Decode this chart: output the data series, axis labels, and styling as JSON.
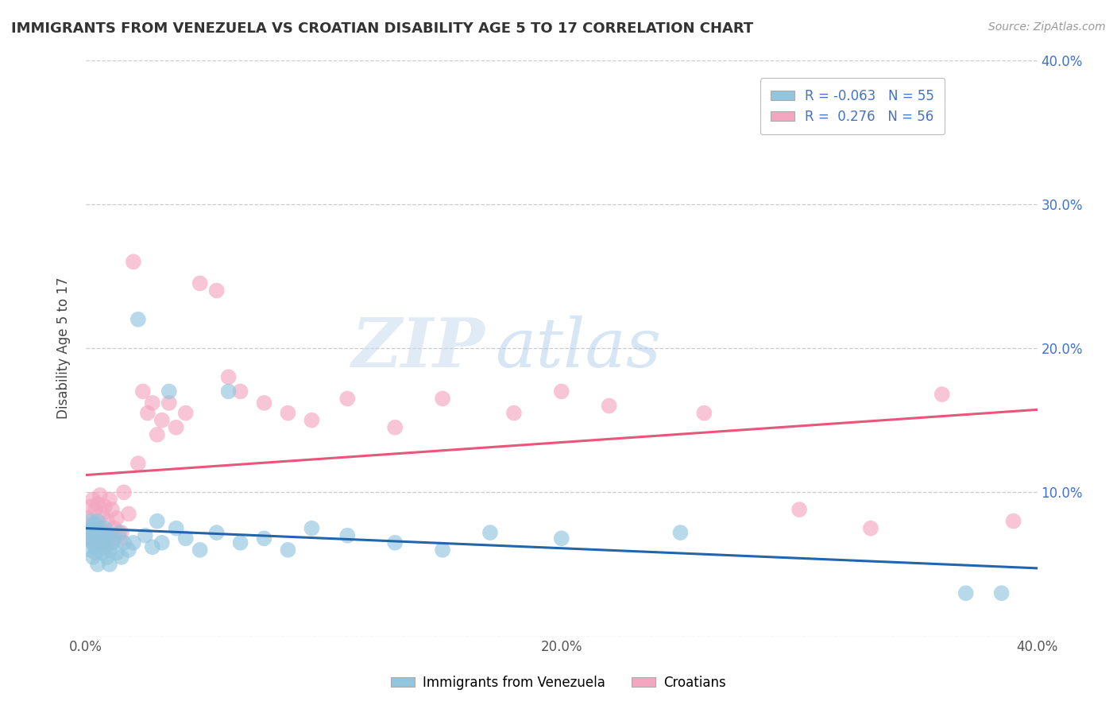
{
  "title": "IMMIGRANTS FROM VENEZUELA VS CROATIAN DISABILITY AGE 5 TO 17 CORRELATION CHART",
  "source": "Source: ZipAtlas.com",
  "ylabel": "Disability Age 5 to 17",
  "xlim": [
    0.0,
    0.4
  ],
  "ylim": [
    0.0,
    0.4
  ],
  "x_ticks": [
    0.0,
    0.1,
    0.2,
    0.3,
    0.4
  ],
  "y_ticks": [
    0.0,
    0.1,
    0.2,
    0.3,
    0.4
  ],
  "x_tick_labels": [
    "0.0%",
    "",
    "20.0%",
    "",
    "40.0%"
  ],
  "y_tick_labels_right": [
    "",
    "10.0%",
    "20.0%",
    "30.0%",
    "40.0%"
  ],
  "color_blue": "#92C5DE",
  "color_pink": "#F4A6C0",
  "color_blue_line": "#2166AC",
  "color_pink_line": "#E8567A",
  "watermark_zip": "ZIP",
  "watermark_atlas": "atlas",
  "blue_scatter_x": [
    0.001,
    0.001,
    0.002,
    0.002,
    0.002,
    0.003,
    0.003,
    0.003,
    0.004,
    0.004,
    0.004,
    0.005,
    0.005,
    0.005,
    0.006,
    0.006,
    0.007,
    0.007,
    0.008,
    0.008,
    0.009,
    0.009,
    0.01,
    0.01,
    0.011,
    0.012,
    0.013,
    0.014,
    0.015,
    0.016,
    0.018,
    0.02,
    0.022,
    0.025,
    0.028,
    0.03,
    0.032,
    0.035,
    0.038,
    0.042,
    0.048,
    0.055,
    0.06,
    0.065,
    0.075,
    0.085,
    0.095,
    0.11,
    0.13,
    0.15,
    0.17,
    0.2,
    0.25,
    0.37,
    0.385
  ],
  "blue_scatter_y": [
    0.074,
    0.068,
    0.08,
    0.06,
    0.072,
    0.065,
    0.075,
    0.055,
    0.078,
    0.062,
    0.058,
    0.07,
    0.05,
    0.08,
    0.065,
    0.072,
    0.068,
    0.058,
    0.075,
    0.062,
    0.055,
    0.07,
    0.06,
    0.05,
    0.065,
    0.068,
    0.058,
    0.072,
    0.055,
    0.065,
    0.06,
    0.065,
    0.22,
    0.07,
    0.062,
    0.08,
    0.065,
    0.17,
    0.075,
    0.068,
    0.06,
    0.072,
    0.17,
    0.065,
    0.068,
    0.06,
    0.075,
    0.07,
    0.065,
    0.06,
    0.072,
    0.068,
    0.072,
    0.03,
    0.03
  ],
  "pink_scatter_x": [
    0.001,
    0.001,
    0.002,
    0.002,
    0.003,
    0.003,
    0.003,
    0.004,
    0.004,
    0.005,
    0.005,
    0.006,
    0.006,
    0.007,
    0.007,
    0.008,
    0.008,
    0.009,
    0.009,
    0.01,
    0.01,
    0.011,
    0.012,
    0.013,
    0.014,
    0.015,
    0.016,
    0.018,
    0.02,
    0.022,
    0.024,
    0.026,
    0.028,
    0.03,
    0.032,
    0.035,
    0.038,
    0.042,
    0.048,
    0.055,
    0.06,
    0.065,
    0.075,
    0.085,
    0.095,
    0.11,
    0.13,
    0.15,
    0.18,
    0.2,
    0.22,
    0.26,
    0.3,
    0.33,
    0.36,
    0.39
  ],
  "pink_scatter_y": [
    0.082,
    0.068,
    0.09,
    0.075,
    0.095,
    0.078,
    0.065,
    0.088,
    0.072,
    0.092,
    0.068,
    0.098,
    0.075,
    0.085,
    0.062,
    0.09,
    0.072,
    0.08,
    0.065,
    0.095,
    0.07,
    0.088,
    0.075,
    0.082,
    0.068,
    0.072,
    0.1,
    0.085,
    0.26,
    0.12,
    0.17,
    0.155,
    0.162,
    0.14,
    0.15,
    0.162,
    0.145,
    0.155,
    0.245,
    0.24,
    0.18,
    0.17,
    0.162,
    0.155,
    0.15,
    0.165,
    0.145,
    0.165,
    0.155,
    0.17,
    0.16,
    0.155,
    0.088,
    0.075,
    0.168,
    0.08
  ]
}
